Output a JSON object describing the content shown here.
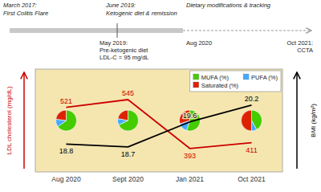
{
  "chart_data": [
    {
      "type": "line",
      "annotations": [
        "March 2017:",
        "First Colitis Flare",
        "June 2019:",
        "Ketogenic diet & remission",
        "Dietary modifications & tracking",
        "May 2019:",
        "Pre-ketogenic diet",
        "LDL-C = 95 mg/dL",
        "Aug 2020",
        "Oct 2021:",
        "CCTA"
      ],
      "ylabel": "LDL cholesterol (mg/dL)",
      "y2label": "BMI (kg/m²)",
      "categories": [
        "Aug 2020",
        "Sept 2020",
        "Jan 2021",
        "Oct 2021"
      ],
      "series": [
        {
          "color": "#cc0000",
          "values": [
            521,
            545,
            393,
            411
          ]
        },
        {
          "color": "#000000",
          "values": [
            18.8,
            18.7,
            19.6,
            20.2
          ],
          "axis": "y2"
        }
      ],
      "ylim": [
        320,
        640
      ],
      "y2lim": [
        17.8,
        21.5
      ],
      "data_labels": true,
      "tick_labels": "x"
    },
    {
      "type": "pie",
      "categories": [
        "MUFA (%)",
        "PUFA (%)",
        "Saturated (%)"
      ],
      "colors": [
        "#44cc00",
        "#44aaff",
        "#dd2200"
      ],
      "series": [
        {
          "values": [
            65,
            12,
            23
          ]
        },
        {
          "values": [
            68,
            10,
            22
          ]
        },
        {
          "values": [
            55,
            15,
            30
          ]
        },
        {
          "values": [
            42,
            8,
            50
          ]
        }
      ],
      "legend": "upper right"
    }
  ]
}
